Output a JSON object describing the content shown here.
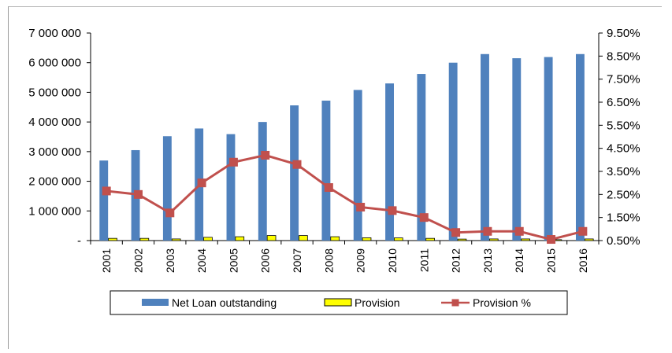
{
  "chart_data": {
    "type": "bar",
    "categories": [
      "2001",
      "2002",
      "2003",
      "2004",
      "2005",
      "2006",
      "2007",
      "2008",
      "2009",
      "2010",
      "2011",
      "2012",
      "2013",
      "2014",
      "2015",
      "2016"
    ],
    "series": [
      {
        "name": "Net Loan outstanding",
        "kind": "bar",
        "axis": "left",
        "color": "#4F81BD",
        "values": [
          2700000,
          3050000,
          3520000,
          3780000,
          3590000,
          4000000,
          4560000,
          4720000,
          5080000,
          5300000,
          5620000,
          6000000,
          6290000,
          6150000,
          6190000,
          6290000
        ]
      },
      {
        "name": "Provision",
        "kind": "bar",
        "axis": "left",
        "color": "#FFFF00",
        "values": [
          75000,
          75000,
          55000,
          110000,
          130000,
          170000,
          170000,
          130000,
          95000,
          90000,
          75000,
          50000,
          55000,
          55000,
          30000,
          55000
        ]
      },
      {
        "name": "Provision %",
        "kind": "line",
        "axis": "right",
        "color": "#C0504D",
        "values": [
          2.65,
          2.5,
          1.7,
          3.0,
          3.9,
          4.2,
          3.8,
          2.8,
          1.95,
          1.8,
          1.5,
          0.85,
          0.9,
          0.9,
          0.55,
          0.9
        ]
      }
    ],
    "y_left": {
      "ylim": [
        0,
        7000000
      ],
      "ticks": [
        0,
        1000000,
        2000000,
        3000000,
        4000000,
        5000000,
        6000000,
        7000000
      ],
      "tick_labels": [
        "-",
        "1 000 000",
        "2 000 000",
        "3 000 000",
        "4 000 000",
        "5 000 000",
        "6 000 000",
        "7 000 000"
      ]
    },
    "y_right": {
      "ylim": [
        0.5,
        9.5
      ],
      "ticks": [
        0.5,
        1.5,
        2.5,
        3.5,
        4.5,
        5.5,
        6.5,
        7.5,
        8.5,
        9.5
      ],
      "tick_labels": [
        "0.50%",
        "1.50%",
        "2.50%",
        "3.50%",
        "4.50%",
        "5.50%",
        "6.50%",
        "7.50%",
        "8.50%",
        "9.50%"
      ]
    },
    "grid": false,
    "legend": "bottom"
  }
}
